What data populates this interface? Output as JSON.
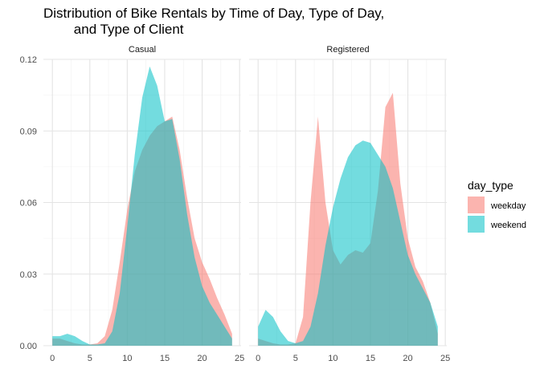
{
  "chart_data": {
    "type": "area",
    "title": "Distribution of Bike Rentals by Time of Day, Type of Day,\n        and Type of Client",
    "xlabel": "",
    "ylabel": "",
    "xlim": [
      0,
      24
    ],
    "ylim": [
      0,
      0.12
    ],
    "x_ticks": [
      0,
      5,
      10,
      15,
      20,
      25
    ],
    "y_ticks": [
      0.0,
      0.03,
      0.06,
      0.09,
      0.12
    ],
    "y_tick_labels": [
      "0.00",
      "0.03",
      "0.06",
      "0.09",
      "0.12"
    ],
    "grid": true,
    "legend": {
      "title": "day_type",
      "position": "right",
      "entries": [
        {
          "name": "weekday",
          "color": "#F8766D"
        },
        {
          "name": "weekend",
          "color": "#00BFC4"
        }
      ]
    },
    "facets": [
      {
        "label": "Casual",
        "series": [
          {
            "name": "weekday",
            "color": "#F8766D",
            "x": [
              0,
              1,
              2,
              3,
              4,
              5,
              6,
              7,
              8,
              9,
              10,
              11,
              12,
              13,
              14,
              15,
              16,
              17,
              18,
              19,
              20,
              21,
              22,
              23,
              24
            ],
            "y": [
              0.003,
              0.003,
              0.002,
              0.001,
              0.0005,
              0.0005,
              0.001,
              0.004,
              0.015,
              0.035,
              0.057,
              0.073,
              0.082,
              0.088,
              0.092,
              0.094,
              0.096,
              0.082,
              0.062,
              0.045,
              0.035,
              0.028,
              0.02,
              0.013,
              0.005
            ]
          },
          {
            "name": "weekend",
            "color": "#00BFC4",
            "x": [
              0,
              1,
              2,
              3,
              4,
              5,
              6,
              7,
              8,
              9,
              10,
              11,
              12,
              13,
              14,
              15,
              16,
              17,
              18,
              19,
              20,
              21,
              22,
              23,
              24
            ],
            "y": [
              0.004,
              0.004,
              0.005,
              0.004,
              0.002,
              0.0005,
              0.0005,
              0.001,
              0.006,
              0.022,
              0.05,
              0.08,
              0.104,
              0.117,
              0.109,
              0.094,
              0.095,
              0.078,
              0.055,
              0.037,
              0.025,
              0.018,
              0.013,
              0.008,
              0.003
            ]
          }
        ]
      },
      {
        "label": "Registered",
        "series": [
          {
            "name": "weekday",
            "color": "#F8766D",
            "x": [
              0,
              1,
              2,
              3,
              4,
              5,
              6,
              7,
              8,
              9,
              10,
              11,
              12,
              13,
              14,
              15,
              16,
              17,
              18,
              19,
              20,
              21,
              22,
              23,
              24
            ],
            "y": [
              0.003,
              0.002,
              0.001,
              0.0005,
              0.0005,
              0.001,
              0.012,
              0.06,
              0.096,
              0.06,
              0.04,
              0.034,
              0.038,
              0.04,
              0.039,
              0.043,
              0.065,
              0.1,
              0.106,
              0.068,
              0.045,
              0.033,
              0.027,
              0.018,
              0.005
            ]
          },
          {
            "name": "weekend",
            "color": "#00BFC4",
            "x": [
              0,
              1,
              2,
              3,
              4,
              5,
              6,
              7,
              8,
              9,
              10,
              11,
              12,
              13,
              14,
              15,
              16,
              17,
              18,
              19,
              20,
              21,
              22,
              23,
              24
            ],
            "y": [
              0.008,
              0.015,
              0.012,
              0.006,
              0.002,
              0.001,
              0.002,
              0.008,
              0.022,
              0.042,
              0.058,
              0.07,
              0.079,
              0.084,
              0.086,
              0.085,
              0.08,
              0.075,
              0.066,
              0.052,
              0.038,
              0.03,
              0.024,
              0.018,
              0.008
            ]
          }
        ]
      }
    ]
  }
}
